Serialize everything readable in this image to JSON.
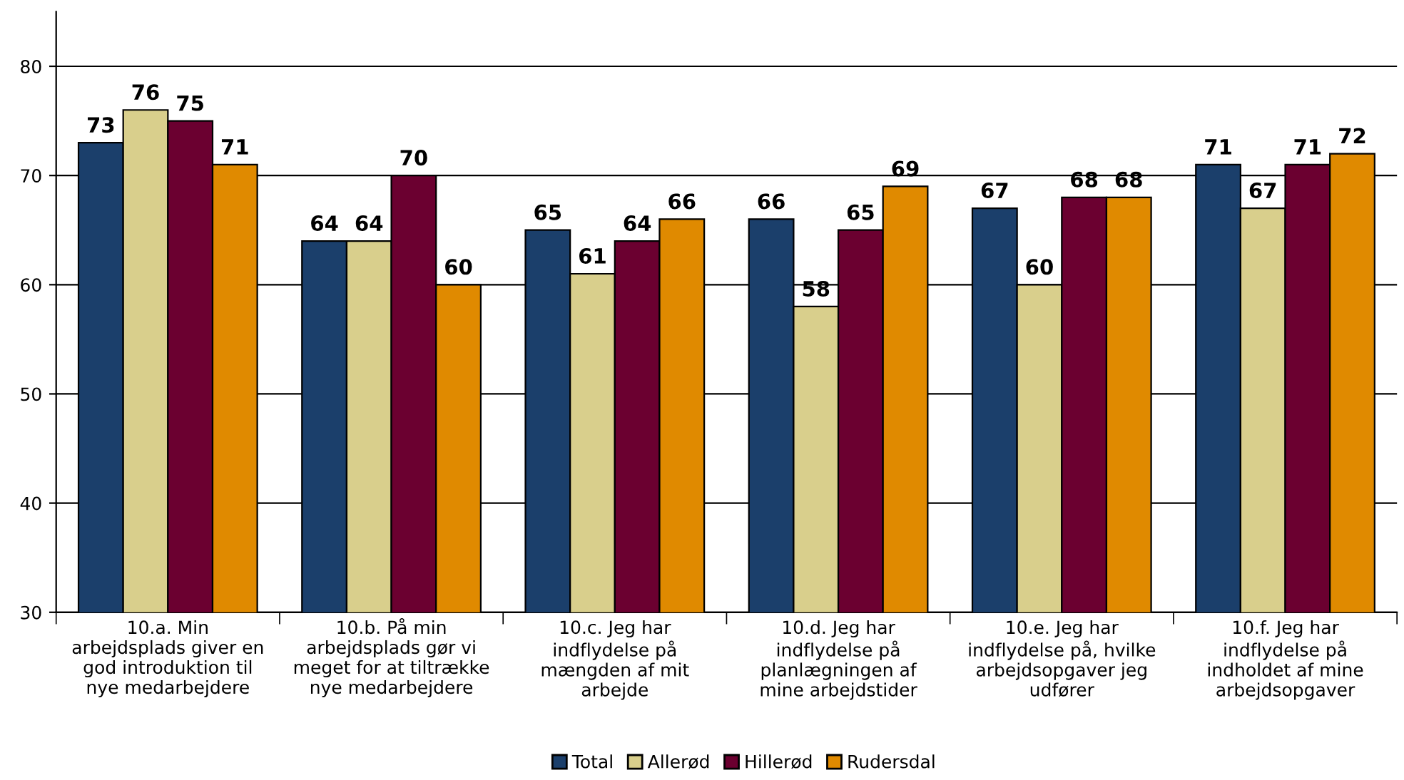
{
  "chart_data": {
    "type": "bar",
    "categories": [
      "10.a. Min\narbejdsplads giver en\ngod introduktion til\nnye medarbejdere",
      "10.b. På min\narbejdsplads gør vi\nmeget for at tiltrække\nnye medarbejdere",
      "10.c. Jeg har\nindflydelse på\nmængden af mit\narbejde",
      "10.d. Jeg har\nindflydelse på\nplanlægningen af\nmine arbejdstider",
      "10.e. Jeg har\nindflydelse på, hvilke\narbejdsopgaver jeg\nudfører",
      "10.f. Jeg har\nindflydelse på\nindholdet af mine\narbejdsopgaver"
    ],
    "series": [
      {
        "name": "Total",
        "color": "#1b3f6b",
        "values": [
          73,
          64,
          65,
          66,
          67,
          71
        ]
      },
      {
        "name": "Allerød",
        "color": "#d9cf8c",
        "values": [
          76,
          64,
          61,
          58,
          60,
          67
        ]
      },
      {
        "name": "Hillerød",
        "color": "#6b0030",
        "values": [
          75,
          70,
          64,
          65,
          68,
          71
        ]
      },
      {
        "name": "Rudersdal",
        "color": "#e08a00",
        "values": [
          71,
          60,
          66,
          69,
          68,
          72
        ]
      }
    ],
    "ylim": [
      30,
      85
    ],
    "yticks": [
      30,
      40,
      50,
      60,
      70,
      80
    ],
    "grid": "y",
    "legend": "bottom",
    "data_labels": true
  }
}
